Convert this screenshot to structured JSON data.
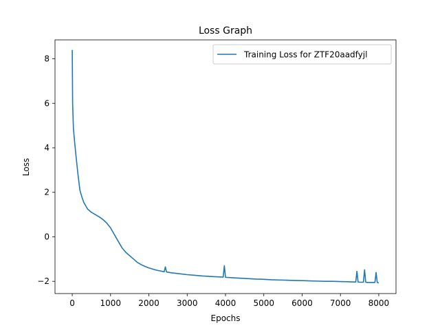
{
  "chart_data": {
    "type": "line",
    "title": "Loss Graph",
    "xlabel": "Epochs",
    "ylabel": "Loss",
    "xlim": [
      -450,
      8450
    ],
    "ylim": [
      -2.55,
      8.85
    ],
    "xticks": [
      0,
      1000,
      2000,
      3000,
      4000,
      5000,
      6000,
      7000,
      8000
    ],
    "yticks": [
      -2,
      0,
      2,
      4,
      6,
      8
    ],
    "grid": false,
    "legend_position": "top-right",
    "series": [
      {
        "name": "Training Loss for ZTF20aadfyjl",
        "color": "#1f77b4",
        "x": [
          0,
          10,
          30,
          60,
          100,
          150,
          200,
          250,
          300,
          400,
          500,
          600,
          700,
          800,
          900,
          1000,
          1100,
          1200,
          1300,
          1400,
          1500,
          1600,
          1700,
          1800,
          1900,
          2000,
          2200,
          2400,
          2430,
          2460,
          2600,
          2800,
          3000,
          3200,
          3400,
          3600,
          3800,
          3940,
          3970,
          4000,
          4200,
          4400,
          4600,
          4800,
          5000,
          5200,
          5400,
          5600,
          5800,
          6000,
          6200,
          6400,
          6600,
          6800,
          7000,
          7200,
          7400,
          7430,
          7460,
          7500,
          7600,
          7630,
          7660,
          7700,
          7800,
          7900,
          7930,
          7960,
          8000
        ],
        "y": [
          8.4,
          6.0,
          4.9,
          4.3,
          3.6,
          2.8,
          2.1,
          1.8,
          1.55,
          1.25,
          1.1,
          1.0,
          0.9,
          0.78,
          0.62,
          0.4,
          0.1,
          -0.2,
          -0.5,
          -0.7,
          -0.85,
          -1.0,
          -1.15,
          -1.25,
          -1.33,
          -1.4,
          -1.5,
          -1.57,
          -1.35,
          -1.58,
          -1.62,
          -1.66,
          -1.7,
          -1.73,
          -1.76,
          -1.78,
          -1.8,
          -1.81,
          -1.3,
          -1.82,
          -1.84,
          -1.86,
          -1.88,
          -1.9,
          -1.91,
          -1.93,
          -1.94,
          -1.95,
          -1.96,
          -1.97,
          -1.98,
          -1.99,
          -2.0,
          -2.0,
          -2.01,
          -2.02,
          -2.03,
          -1.55,
          -2.03,
          -2.04,
          -2.04,
          -1.48,
          -2.04,
          -2.05,
          -2.05,
          -2.05,
          -1.6,
          -2.05,
          -2.07
        ]
      }
    ]
  }
}
